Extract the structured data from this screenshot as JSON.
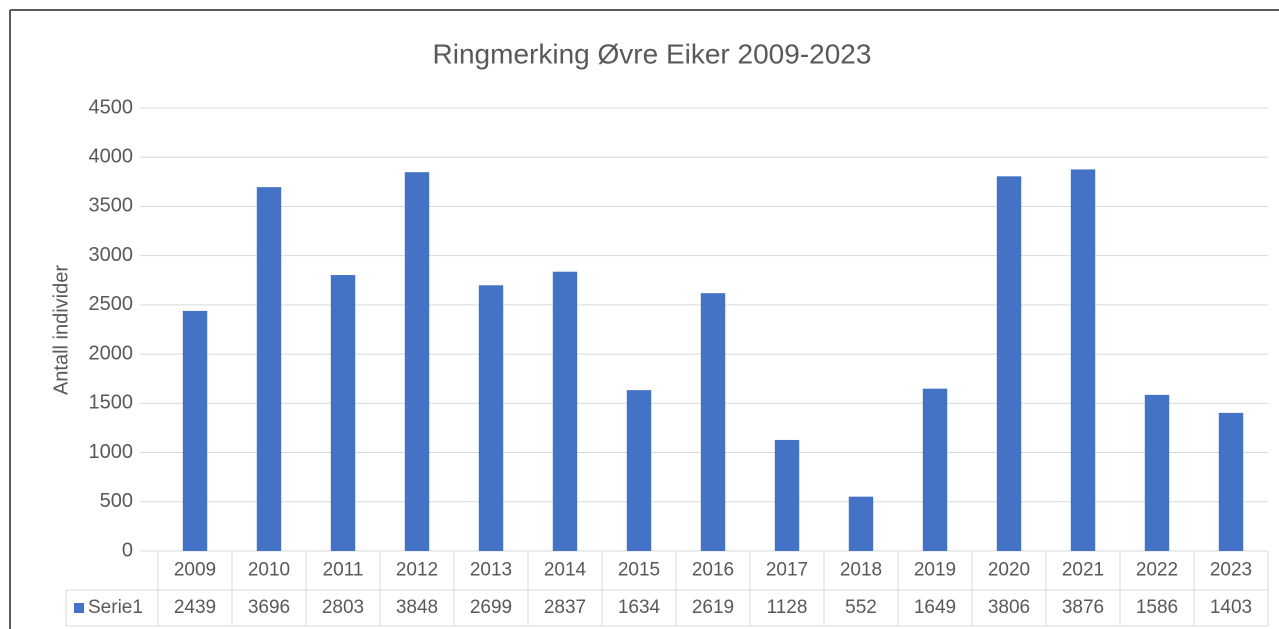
{
  "chart_data": {
    "type": "bar",
    "title": "Ringmerking Øvre Eiker 2009-2023",
    "y_label": "Antall individer",
    "categories": [
      "2009",
      "2010",
      "2011",
      "2012",
      "2013",
      "2014",
      "2015",
      "2016",
      "2017",
      "2018",
      "2019",
      "2020",
      "2021",
      "2022",
      "2023"
    ],
    "series": [
      {
        "name": "Serie1",
        "color": "#4472c4",
        "values": [
          2439,
          3696,
          2803,
          3848,
          2699,
          2837,
          1634,
          2619,
          1128,
          552,
          1649,
          3806,
          3876,
          1586,
          1403
        ]
      }
    ],
    "ylim": [
      0,
      4500
    ],
    "yticks": [
      0,
      500,
      1000,
      1500,
      2000,
      2500,
      3000,
      3500,
      4000,
      4500
    ],
    "grid": true,
    "data_table": true
  }
}
